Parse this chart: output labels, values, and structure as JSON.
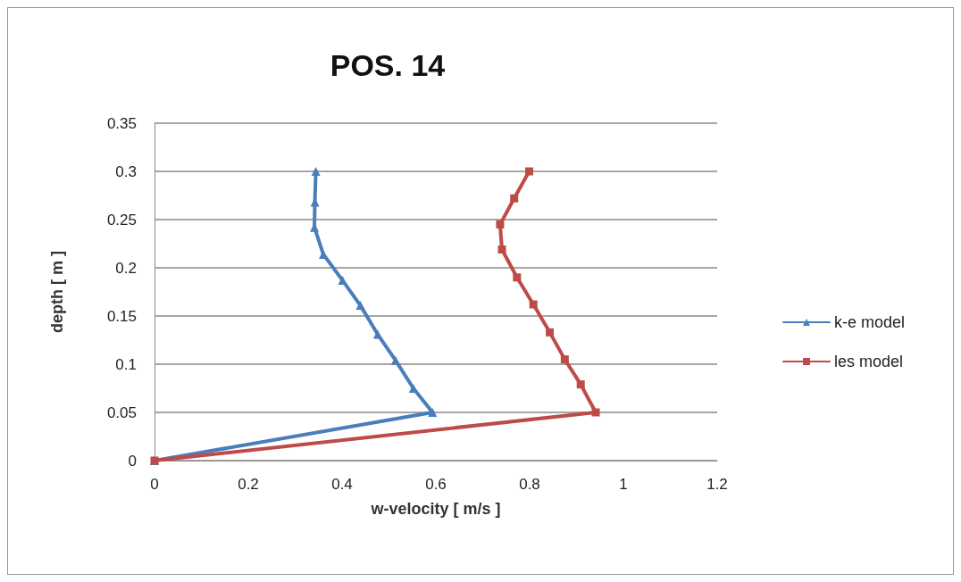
{
  "chart_data": {
    "type": "line",
    "title": "POS. 14",
    "xlabel": "w-velocity [ m/s ]",
    "ylabel": "depth [ m ]",
    "series": [
      {
        "name": "k-e model",
        "color": "#4a7ebb",
        "marker": "triangle",
        "x": [
          0,
          0.593,
          0.552,
          0.514,
          0.476,
          0.439,
          0.401,
          0.36,
          0.341,
          0.342,
          0.344
        ],
        "values": [
          0,
          0.05,
          0.075,
          0.104,
          0.131,
          0.161,
          0.187,
          0.214,
          0.242,
          0.268,
          0.3
        ]
      },
      {
        "name": "les model",
        "color": "#be4b48",
        "marker": "square",
        "x": [
          0,
          0.941,
          0.909,
          0.875,
          0.843,
          0.808,
          0.773,
          0.741,
          0.737,
          0.767,
          0.799
        ],
        "values": [
          0,
          0.05,
          0.079,
          0.105,
          0.133,
          0.162,
          0.19,
          0.219,
          0.245,
          0.272,
          0.3
        ]
      }
    ],
    "xlim": [
      0,
      1.2
    ],
    "xticks": [
      0,
      0.2,
      0.4,
      0.6,
      0.8,
      1,
      1.2
    ],
    "ylim": [
      0,
      0.35
    ],
    "yticks": [
      0,
      0.05,
      0.1,
      0.15,
      0.2,
      0.25,
      0.3,
      0.35
    ],
    "grid": "y",
    "legend": "right",
    "line_style": "solid"
  }
}
